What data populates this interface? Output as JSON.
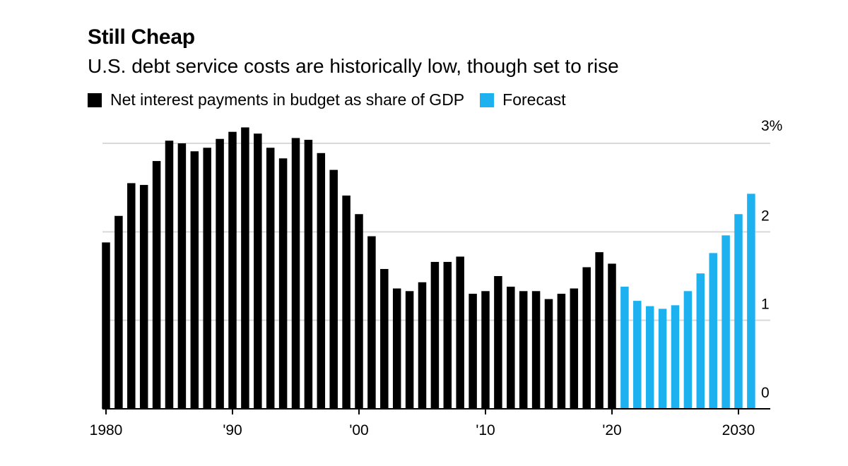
{
  "chart_data": {
    "type": "bar",
    "title": "Still Cheap",
    "subtitle": "U.S. debt service costs are historically low, though set to rise",
    "legend_placement": "top-left",
    "series": [
      {
        "name": "Net interest payments in budget as share of GDP",
        "color": "#000000",
        "x_start": 1980,
        "values": [
          1.88,
          2.18,
          2.55,
          2.53,
          2.8,
          3.03,
          3.0,
          2.91,
          2.95,
          3.05,
          3.13,
          3.18,
          3.11,
          2.95,
          2.83,
          3.06,
          3.04,
          2.89,
          2.7,
          2.41,
          2.2,
          1.95,
          1.58,
          1.36,
          1.33,
          1.43,
          1.66,
          1.66,
          1.72,
          1.3,
          1.33,
          1.5,
          1.38,
          1.33,
          1.33,
          1.24,
          1.3,
          1.36,
          1.6,
          1.77,
          1.64
        ]
      },
      {
        "name": "Forecast",
        "color": "#1EB1F0",
        "x_start": 2021,
        "values": [
          1.38,
          1.22,
          1.16,
          1.13,
          1.17,
          1.33,
          1.53,
          1.76,
          1.96,
          2.2,
          2.43
        ]
      }
    ],
    "x_tick_labels": [
      {
        "x": 1980,
        "label": "1980"
      },
      {
        "x": 1990,
        "label": "'90"
      },
      {
        "x": 2000,
        "label": "'00"
      },
      {
        "x": 2010,
        "label": "'10"
      },
      {
        "x": 2020,
        "label": "'20"
      },
      {
        "x": 2030,
        "label": "2030"
      }
    ],
    "y_ticks": [
      {
        "value": 0,
        "label": "0"
      },
      {
        "value": 1,
        "label": "1"
      },
      {
        "value": 2,
        "label": "2"
      },
      {
        "value": 3,
        "label": "3%"
      }
    ],
    "ylim": [
      0,
      3
    ],
    "xlim": [
      1980,
      2031
    ],
    "grid": true
  }
}
